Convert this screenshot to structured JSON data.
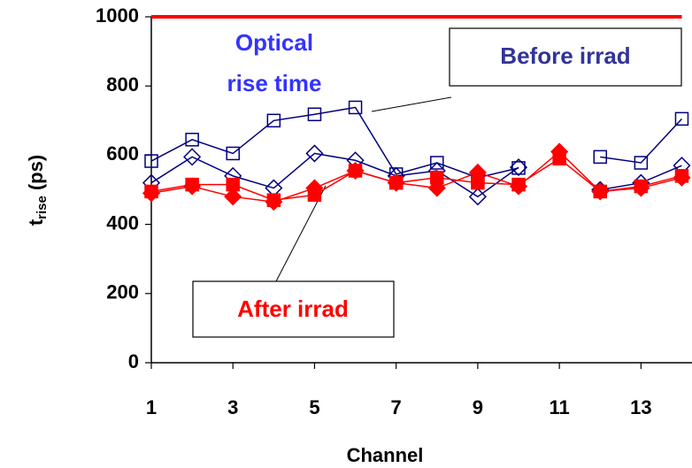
{
  "chart_data": {
    "type": "line",
    "x_label": "Channel",
    "y_label": {
      "main": "t",
      "sub": "rise",
      "unit": "(ps)"
    },
    "annotations": {
      "optical_line1": "Optical",
      "optical_line2": "rise time",
      "before": "Before irrad",
      "after": "After irrad"
    },
    "x": [
      1,
      2,
      3,
      4,
      5,
      6,
      7,
      8,
      9,
      10,
      11,
      12,
      13,
      14
    ],
    "xlim": [
      1,
      14.25
    ],
    "xticks": [
      1,
      3,
      5,
      7,
      9,
      11,
      13
    ],
    "ylim": [
      0,
      1000
    ],
    "yticks": [
      0,
      200,
      400,
      600,
      800,
      1000
    ],
    "limit": {
      "value": 1000,
      "color": "#ff0000"
    },
    "series": [
      {
        "color": "#000080",
        "marker": "square",
        "filled": false,
        "values": [
          583,
          645,
          605,
          700,
          718,
          738,
          545,
          578,
          535,
          563,
          null,
          595,
          578,
          705
        ]
      },
      {
        "color": "#000080",
        "marker": "diamond",
        "filled": false,
        "values": [
          520,
          595,
          540,
          505,
          605,
          585,
          540,
          555,
          480,
          565,
          null,
          500,
          520,
          570
        ]
      },
      {
        "color": "#ff0000",
        "marker": "diamond",
        "filled": true,
        "values": [
          490,
          510,
          480,
          465,
          505,
          555,
          520,
          505,
          550,
          510,
          610,
          495,
          505,
          535
        ]
      },
      {
        "color": "#ff0000",
        "marker": "square",
        "filled": true,
        "values": [
          495,
          515,
          515,
          470,
          485,
          555,
          520,
          535,
          520,
          515,
          590,
          495,
          510,
          540
        ]
      }
    ]
  }
}
